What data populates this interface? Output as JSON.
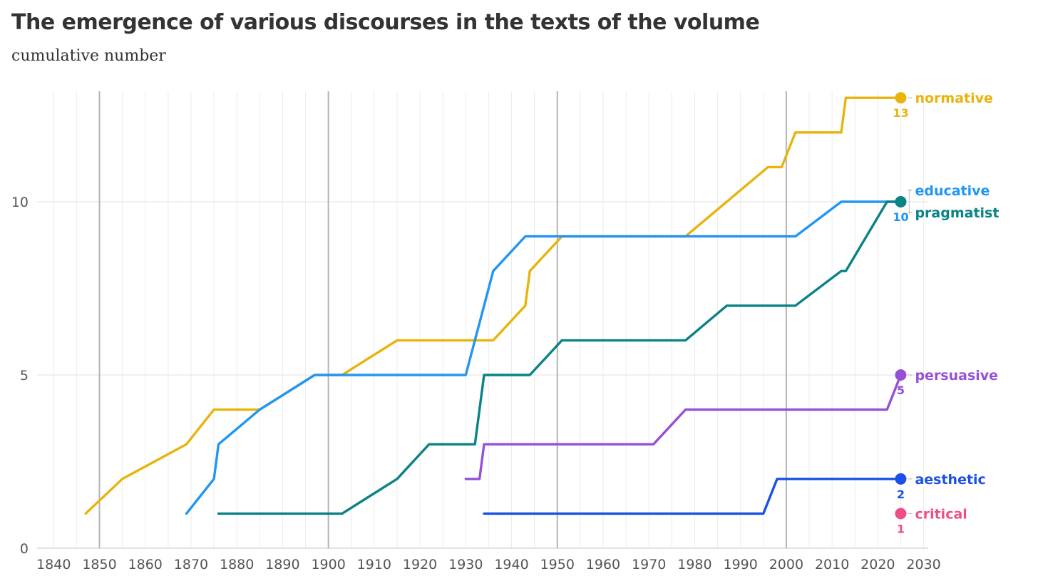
{
  "title": "The emergence of various discourses in the texts of the volume",
  "subtitle": "cumulative number",
  "chart_data": {
    "type": "line",
    "title": "The emergence of various discourses in the texts of the volume",
    "subtitle": "cumulative number",
    "xlabel": "",
    "ylabel": "",
    "xlim": [
      1837,
      2031
    ],
    "ylim": [
      0,
      13.5
    ],
    "x_ticks": [
      1840,
      1850,
      1860,
      1870,
      1880,
      1890,
      1900,
      1910,
      1920,
      1930,
      1940,
      1950,
      1960,
      1970,
      1980,
      1990,
      2000,
      2010,
      2020,
      2030
    ],
    "y_ticks": [
      0,
      5,
      10
    ],
    "major_gridlines_x": [
      1850,
      1900,
      1950,
      2000
    ],
    "series": [
      {
        "name": "normative",
        "color": "#e8b40c",
        "end_label": "13",
        "points": [
          [
            1847,
            1
          ],
          [
            1855,
            2
          ],
          [
            1869,
            3
          ],
          [
            1875,
            4
          ],
          [
            1885,
            4
          ],
          [
            1897,
            5
          ],
          [
            1903,
            5
          ],
          [
            1915,
            6
          ],
          [
            1936,
            6
          ],
          [
            1943,
            7
          ],
          [
            1944,
            8
          ],
          [
            1951,
            9
          ],
          [
            1978,
            9
          ],
          [
            1987,
            10
          ],
          [
            1996,
            11
          ],
          [
            1999,
            11
          ],
          [
            2002,
            12
          ],
          [
            2012,
            12
          ],
          [
            2013,
            13
          ],
          [
            2025,
            13
          ]
        ]
      },
      {
        "name": "educative",
        "color": "#2196f3",
        "end_label": "10",
        "points": [
          [
            1869,
            1
          ],
          [
            1875,
            2
          ],
          [
            1876,
            3
          ],
          [
            1885,
            4
          ],
          [
            1897,
            5
          ],
          [
            1930,
            5
          ],
          [
            1934,
            7
          ],
          [
            1936,
            8
          ],
          [
            1943,
            9
          ],
          [
            2002,
            9
          ],
          [
            2012,
            10
          ],
          [
            2025,
            10
          ]
        ]
      },
      {
        "name": "pragmatist",
        "color": "#0a8286",
        "end_label": "",
        "points": [
          [
            1876,
            1
          ],
          [
            1903,
            1
          ],
          [
            1915,
            2
          ],
          [
            1922,
            3
          ],
          [
            1932,
            3
          ],
          [
            1934,
            5
          ],
          [
            1944,
            5
          ],
          [
            1951,
            6
          ],
          [
            1978,
            6
          ],
          [
            1987,
            7
          ],
          [
            2002,
            7
          ],
          [
            2012,
            8
          ],
          [
            2013,
            8
          ],
          [
            2022,
            10
          ],
          [
            2025,
            10
          ]
        ]
      },
      {
        "name": "persuasive",
        "color": "#9650d6",
        "end_label": "5",
        "points": [
          [
            1930,
            2
          ],
          [
            1933,
            2
          ],
          [
            1934,
            3
          ],
          [
            1971,
            3
          ],
          [
            1978,
            4
          ],
          [
            2022,
            4
          ],
          [
            2025,
            5
          ]
        ]
      },
      {
        "name": "aesthetic",
        "color": "#1a50e6",
        "end_label": "2",
        "points": [
          [
            1934,
            1
          ],
          [
            1995,
            1
          ],
          [
            1998,
            2
          ],
          [
            2025,
            2
          ]
        ]
      },
      {
        "name": "critical",
        "color": "#ee4d8a",
        "end_label": "1",
        "points": [
          [
            2025,
            1
          ]
        ]
      }
    ]
  }
}
